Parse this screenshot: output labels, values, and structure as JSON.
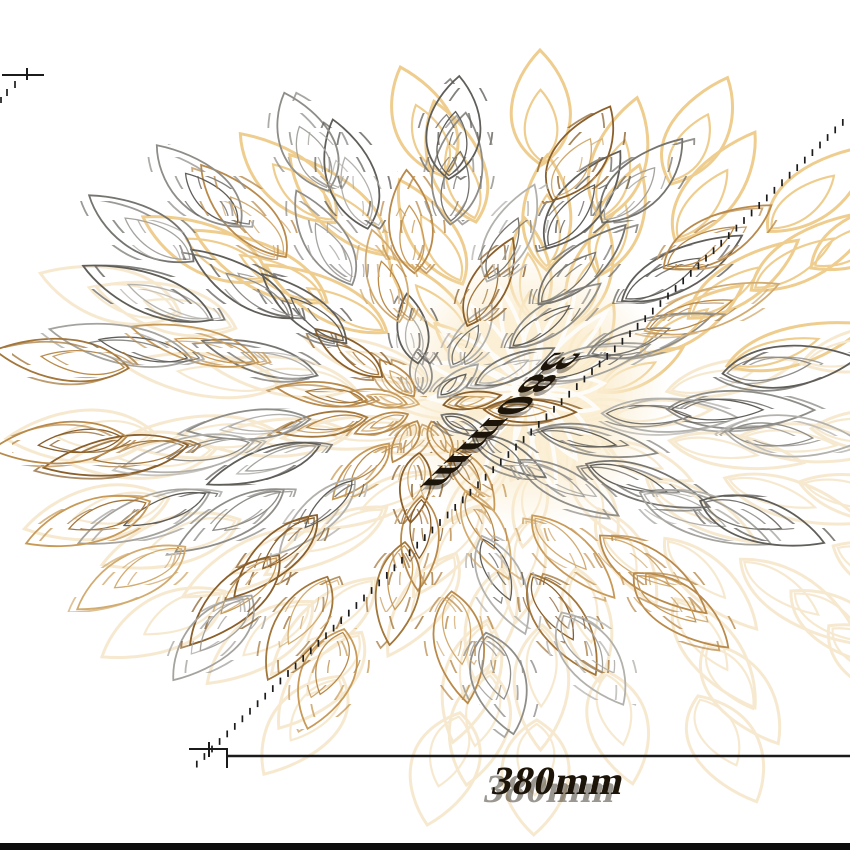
{
  "scene": {
    "name": "flower-placemat-dimension-diagram",
    "height_label": "380mm",
    "width_label": "380mm"
  },
  "colors": {
    "background": "#ffffff",
    "dimension_line": "#1b1b1b",
    "label_text": "#1c1408",
    "bottom_bar": "#0d0d0d",
    "gold_palette": [
      "#b98a4a",
      "#c89a58",
      "#a3763a",
      "#d2ab70",
      "#8a5f2a"
    ],
    "gray_palette": [
      "#8f8d88",
      "#a5a39e",
      "#76746f",
      "#b3b1ac",
      "#605e59"
    ],
    "ghost_top": "#eecd8e",
    "ghost_soft": "#f6e9cf",
    "bud_fill": "#fbeed2",
    "bud_rays": "#ffffff"
  }
}
